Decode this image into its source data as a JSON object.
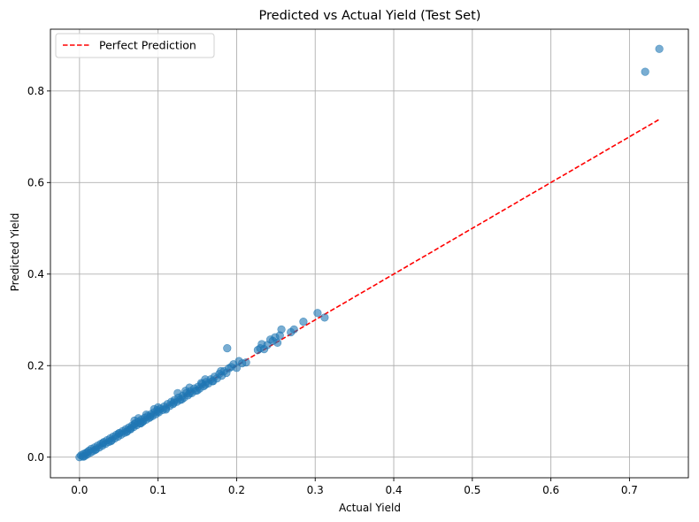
{
  "chart_data": {
    "type": "scatter",
    "title": "Predicted vs Actual Yield (Test Set)",
    "xlabel": "Actual Yield",
    "ylabel": "Predicted Yield",
    "xlim": [
      -0.037,
      0.775
    ],
    "ylim": [
      -0.045,
      0.935
    ],
    "xticks": [
      0.0,
      0.1,
      0.2,
      0.3,
      0.4,
      0.5,
      0.6,
      0.7
    ],
    "xtick_labels": [
      "0.0",
      "0.1",
      "0.2",
      "0.3",
      "0.4",
      "0.5",
      "0.6",
      "0.7"
    ],
    "yticks": [
      0.0,
      0.2,
      0.4,
      0.6,
      0.8
    ],
    "ytick_labels": [
      "0.0",
      "0.2",
      "0.4",
      "0.6",
      "0.8"
    ],
    "grid": true,
    "legend": {
      "position": "top-left",
      "entries": [
        "Perfect Prediction"
      ]
    },
    "colors": {
      "points": "#1f77b4",
      "reference_line": "#ff0000",
      "grid": "#b0b0b0"
    },
    "reference_line": {
      "name": "Perfect Prediction",
      "x": [
        0.0,
        0.738
      ],
      "y": [
        0.0,
        0.738
      ],
      "style": "dashed"
    },
    "series": [
      {
        "points": [
          [
            0.0,
            0.0
          ],
          [
            0.002,
            0.004
          ],
          [
            0.004,
            0.002
          ],
          [
            0.005,
            0.007
          ],
          [
            0.007,
            0.003
          ],
          [
            0.008,
            0.009
          ],
          [
            0.01,
            0.006
          ],
          [
            0.012,
            0.014
          ],
          [
            0.014,
            0.01
          ],
          [
            0.015,
            0.018
          ],
          [
            0.017,
            0.013
          ],
          [
            0.019,
            0.021
          ],
          [
            0.021,
            0.017
          ],
          [
            0.023,
            0.025
          ],
          [
            0.025,
            0.021
          ],
          [
            0.027,
            0.029
          ],
          [
            0.029,
            0.025
          ],
          [
            0.031,
            0.033
          ],
          [
            0.033,
            0.029
          ],
          [
            0.035,
            0.037
          ],
          [
            0.037,
            0.033
          ],
          [
            0.039,
            0.041
          ],
          [
            0.041,
            0.037
          ],
          [
            0.043,
            0.045
          ],
          [
            0.045,
            0.041
          ],
          [
            0.047,
            0.049
          ],
          [
            0.049,
            0.045
          ],
          [
            0.051,
            0.053
          ],
          [
            0.053,
            0.049
          ],
          [
            0.055,
            0.057
          ],
          [
            0.057,
            0.053
          ],
          [
            0.059,
            0.061
          ],
          [
            0.061,
            0.057
          ],
          [
            0.063,
            0.065
          ],
          [
            0.065,
            0.061
          ],
          [
            0.067,
            0.069
          ],
          [
            0.069,
            0.066
          ],
          [
            0.071,
            0.074
          ],
          [
            0.073,
            0.07
          ],
          [
            0.075,
            0.078
          ],
          [
            0.077,
            0.074
          ],
          [
            0.079,
            0.082
          ],
          [
            0.081,
            0.078
          ],
          [
            0.083,
            0.086
          ],
          [
            0.085,
            0.082
          ],
          [
            0.087,
            0.09
          ],
          [
            0.089,
            0.086
          ],
          [
            0.091,
            0.094
          ],
          [
            0.093,
            0.09
          ],
          [
            0.095,
            0.098
          ],
          [
            0.097,
            0.094
          ],
          [
            0.099,
            0.103
          ],
          [
            0.101,
            0.098
          ],
          [
            0.103,
            0.106
          ],
          [
            0.106,
            0.103
          ],
          [
            0.108,
            0.111
          ],
          [
            0.11,
            0.107
          ],
          [
            0.112,
            0.116
          ],
          [
            0.115,
            0.112
          ],
          [
            0.117,
            0.121
          ],
          [
            0.119,
            0.116
          ],
          [
            0.121,
            0.125
          ],
          [
            0.124,
            0.121
          ],
          [
            0.126,
            0.13
          ],
          [
            0.128,
            0.125
          ],
          [
            0.131,
            0.134
          ],
          [
            0.133,
            0.13
          ],
          [
            0.136,
            0.14
          ],
          [
            0.138,
            0.135
          ],
          [
            0.141,
            0.144
          ],
          [
            0.143,
            0.14
          ],
          [
            0.146,
            0.15
          ],
          [
            0.148,
            0.145
          ],
          [
            0.151,
            0.154
          ],
          [
            0.153,
            0.15
          ],
          [
            0.156,
            0.16
          ],
          [
            0.158,
            0.155
          ],
          [
            0.161,
            0.164
          ],
          [
            0.164,
            0.161
          ],
          [
            0.167,
            0.17
          ],
          [
            0.169,
            0.166
          ],
          [
            0.172,
            0.176
          ],
          [
            0.175,
            0.172
          ],
          [
            0.178,
            0.182
          ],
          [
            0.181,
            0.178
          ],
          [
            0.184,
            0.188
          ],
          [
            0.187,
            0.184
          ],
          [
            0.19,
            0.194
          ],
          [
            0.005,
            0.001
          ],
          [
            0.01,
            0.011
          ],
          [
            0.02,
            0.016
          ],
          [
            0.03,
            0.031
          ],
          [
            0.04,
            0.035
          ],
          [
            0.05,
            0.052
          ],
          [
            0.06,
            0.055
          ],
          [
            0.07,
            0.072
          ],
          [
            0.08,
            0.077
          ],
          [
            0.09,
            0.088
          ],
          [
            0.1,
            0.1
          ],
          [
            0.11,
            0.104
          ],
          [
            0.12,
            0.119
          ],
          [
            0.13,
            0.126
          ],
          [
            0.14,
            0.139
          ],
          [
            0.15,
            0.146
          ],
          [
            0.16,
            0.158
          ],
          [
            0.17,
            0.166
          ],
          [
            0.125,
            0.14
          ],
          [
            0.135,
            0.145
          ],
          [
            0.14,
            0.152
          ],
          [
            0.155,
            0.162
          ],
          [
            0.16,
            0.17
          ],
          [
            0.095,
            0.105
          ],
          [
            0.1,
            0.109
          ],
          [
            0.075,
            0.085
          ],
          [
            0.07,
            0.08
          ],
          [
            0.085,
            0.093
          ],
          [
            0.065,
            0.062
          ],
          [
            0.078,
            0.074
          ],
          [
            0.188,
            0.238
          ],
          [
            0.18,
            0.188
          ],
          [
            0.193,
            0.197
          ],
          [
            0.196,
            0.203
          ],
          [
            0.2,
            0.195
          ],
          [
            0.203,
            0.21
          ],
          [
            0.207,
            0.205
          ],
          [
            0.212,
            0.207
          ],
          [
            0.227,
            0.234
          ],
          [
            0.23,
            0.238
          ],
          [
            0.232,
            0.247
          ],
          [
            0.235,
            0.236
          ],
          [
            0.239,
            0.245
          ],
          [
            0.243,
            0.257
          ],
          [
            0.246,
            0.254
          ],
          [
            0.249,
            0.262
          ],
          [
            0.252,
            0.25
          ],
          [
            0.255,
            0.266
          ],
          [
            0.257,
            0.279
          ],
          [
            0.269,
            0.273
          ],
          [
            0.273,
            0.279
          ],
          [
            0.285,
            0.296
          ],
          [
            0.303,
            0.315
          ],
          [
            0.312,
            0.305
          ],
          [
            0.72,
            0.842
          ],
          [
            0.738,
            0.892
          ]
        ]
      }
    ]
  }
}
